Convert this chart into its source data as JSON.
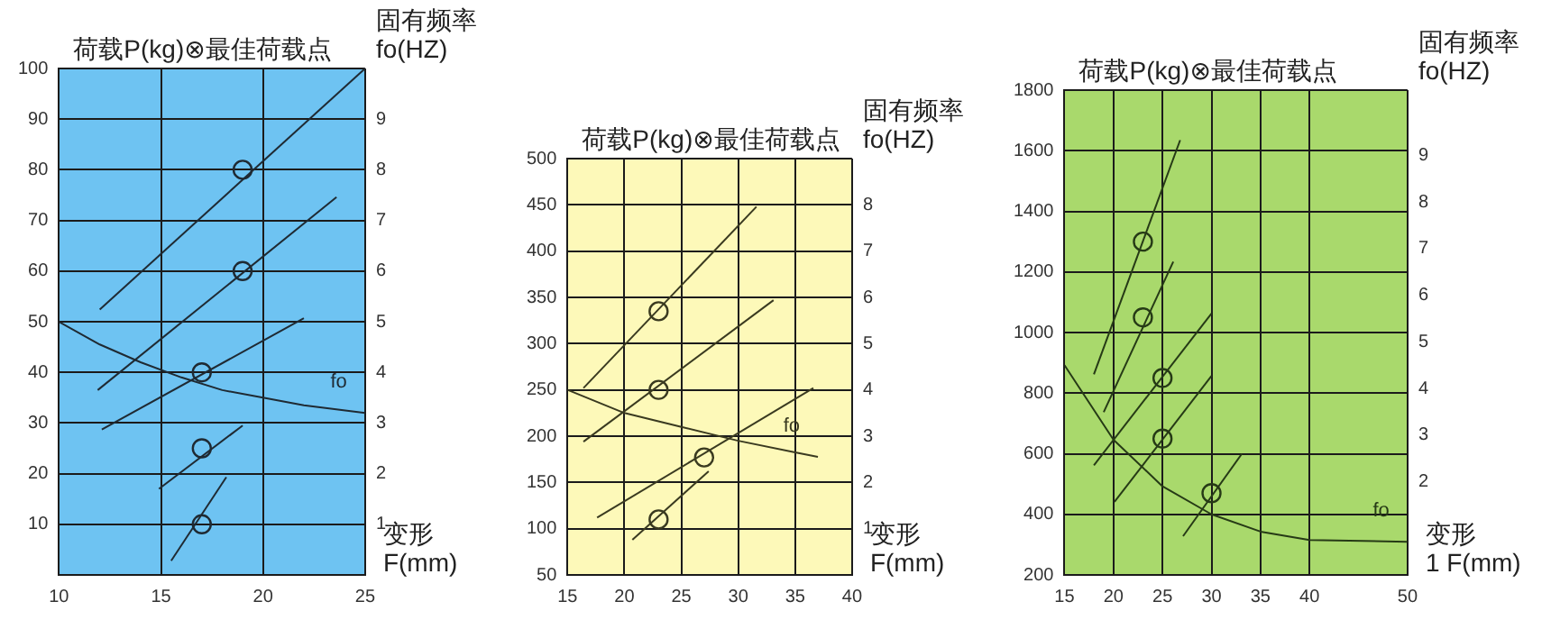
{
  "chart_data": [
    {
      "type": "line",
      "title": "荷载P(kg)⊗最佳荷载点",
      "y2label": "固有频率\nfo(HZ)",
      "xlabel": "变形\nF(mm)",
      "xlim": [
        10,
        25
      ],
      "xticks": [
        10,
        15,
        20,
        25
      ],
      "ylim": [
        0,
        100
      ],
      "yticks": [
        10,
        20,
        30,
        40,
        50,
        60,
        70,
        80,
        90,
        100
      ],
      "y2lim": [
        0,
        10
      ],
      "y2ticks": [
        1,
        2,
        3,
        4,
        5,
        6,
        7,
        8,
        9
      ],
      "grid": true,
      "legend": false,
      "series": [
        {
          "color": "#1f2a33",
          "x": [
            12,
            25
          ],
          "values": [
            52.4,
            100
          ]
        },
        {
          "color": "#1f2a33",
          "x": [
            11.9,
            23.6
          ],
          "values": [
            36.5,
            74.6
          ]
        },
        {
          "color": "#1f2a33",
          "x": [
            12.1,
            22
          ],
          "values": [
            28.7,
            50.7
          ]
        },
        {
          "color": "#1f2a33",
          "x": [
            14.9,
            19
          ],
          "values": [
            17,
            29.5
          ]
        },
        {
          "color": "#1f2a33",
          "x": [
            15.5,
            18.2
          ],
          "values": [
            2.8,
            19.3
          ]
        },
        {
          "name": "fo",
          "color": "#1f2a33",
          "axis": "y2",
          "x": [
            10,
            12,
            14,
            16,
            18,
            20,
            22,
            25
          ],
          "values": [
            5.0,
            4.55,
            4.2,
            3.9,
            3.65,
            3.5,
            3.35,
            3.2
          ]
        },
        {
          "type": "scatter",
          "marker": "circle",
          "color": "#1f2a33",
          "x": [
            19,
            19,
            17,
            17,
            17
          ],
          "values": [
            80,
            60,
            40,
            25,
            10
          ]
        }
      ]
    },
    {
      "type": "line",
      "title": "荷载P(kg)⊗最佳荷载点",
      "y2label": "固有频率\nfo(HZ)",
      "xlabel": "变形\nF(mm)",
      "xlim": [
        15,
        40
      ],
      "xticks": [
        15,
        20,
        25,
        30,
        35,
        40
      ],
      "ylim": [
        50,
        500
      ],
      "yticks": [
        50,
        100,
        150,
        200,
        250,
        300,
        350,
        400,
        450,
        500
      ],
      "y2lim": [
        0,
        9
      ],
      "y2ticks": [
        1,
        2,
        3,
        4,
        5,
        6,
        7,
        8
      ],
      "grid": true,
      "legend": false,
      "series": [
        {
          "color": "#3a3a20",
          "x": [
            16.4,
            31.6
          ],
          "values": [
            252,
            448
          ]
        },
        {
          "color": "#3a3a20",
          "x": [
            16.4,
            33.1
          ],
          "values": [
            194,
            347
          ]
        },
        {
          "color": "#3a3a20",
          "x": [
            17.6,
            36.6
          ],
          "values": [
            112,
            252
          ]
        },
        {
          "color": "#3a3a20",
          "x": [
            20.7,
            27.4
          ],
          "values": [
            88,
            162
          ]
        },
        {
          "name": "fo",
          "color": "#3a3a20",
          "axis": "y2",
          "x": [
            15,
            20,
            25,
            30,
            35,
            37
          ],
          "values": [
            4.0,
            3.5,
            3.2,
            2.9,
            2.65,
            2.55
          ]
        },
        {
          "type": "scatter",
          "marker": "circle",
          "color": "#3a3a20",
          "x": [
            23,
            23,
            27,
            23
          ],
          "values": [
            335,
            250,
            177,
            110
          ]
        }
      ]
    },
    {
      "type": "line",
      "title": "荷载P(kg)⊗最佳荷载点",
      "y2label": "固有频率\nfo(HZ)",
      "xlabel": "变形\n1 F(mm)",
      "xlim": [
        15,
        50
      ],
      "xticks": [
        15,
        20,
        25,
        30,
        35,
        40,
        50
      ],
      "ylim": [
        200,
        1800
      ],
      "yticks": [
        200,
        400,
        600,
        800,
        1000,
        1200,
        1400,
        1600,
        1800
      ],
      "y2lim": [
        0,
        10.4
      ],
      "y2ticks": [
        2,
        3,
        4,
        5,
        6,
        7,
        8,
        9
      ],
      "grid": true,
      "legend": false,
      "series": [
        {
          "color": "#263a16",
          "x": [
            18,
            26.8
          ],
          "values": [
            862,
            1635
          ]
        },
        {
          "color": "#263a16",
          "x": [
            19,
            26.1
          ],
          "values": [
            737,
            1234
          ]
        },
        {
          "color": "#263a16",
          "x": [
            18,
            30
          ],
          "values": [
            562,
            1063
          ]
        },
        {
          "color": "#263a16",
          "x": [
            20.1,
            30
          ],
          "values": [
            441,
            857
          ]
        },
        {
          "color": "#263a16",
          "x": [
            27.1,
            33.1
          ],
          "values": [
            328,
            600
          ]
        },
        {
          "name": "fo",
          "color": "#263a16",
          "axis": "y2",
          "x": [
            15,
            20,
            25,
            30,
            35,
            40,
            50
          ],
          "values": [
            4.5,
            2.9,
            1.9,
            1.3,
            0.93,
            0.75,
            0.71
          ]
        },
        {
          "type": "scatter",
          "marker": "circle",
          "color": "#263a16",
          "x": [
            23,
            23,
            25,
            25,
            30
          ],
          "values": [
            1300,
            1050,
            850,
            650,
            470
          ]
        }
      ]
    }
  ]
}
